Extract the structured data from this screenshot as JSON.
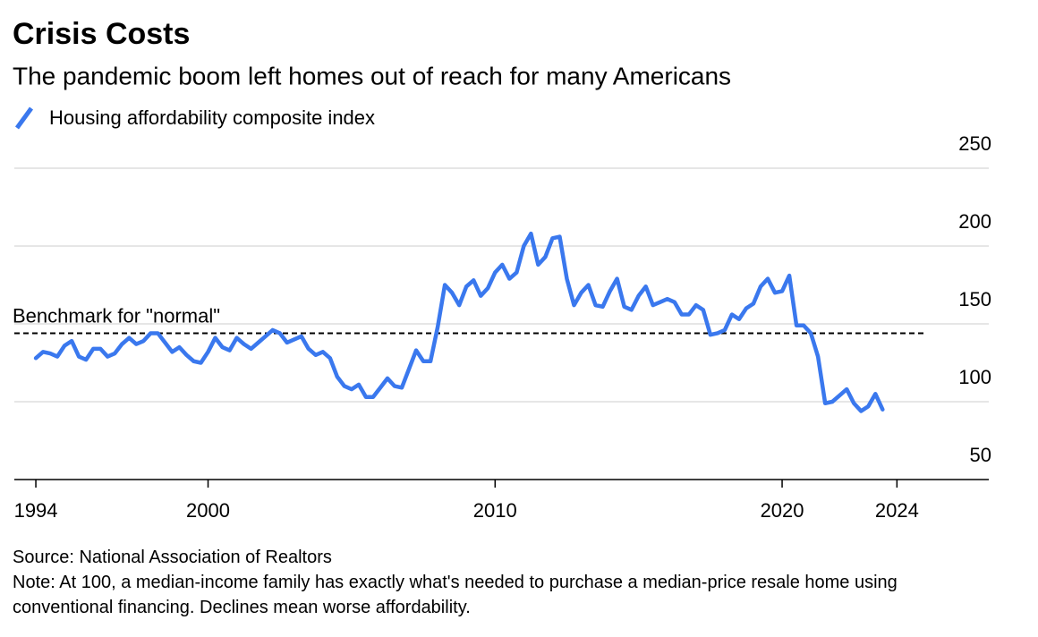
{
  "chart_data": {
    "type": "line",
    "title": "Crisis Costs",
    "subtitle": "The pandemic boom left homes out of reach for many Americans",
    "source": "Source: National Association of Realtors",
    "note": "Note: At 100, a median-income family has exactly what's needed to purchase a median-price resale home using conventional financing. Declines mean worse affordability.",
    "benchmark": {
      "label": "Benchmark for \"normal\"",
      "value": 144
    },
    "xlim": [
      1993.25,
      2027.2
    ],
    "xticks": [
      1994,
      2000,
      2010,
      2020,
      2024
    ],
    "ylim": [
      50,
      250
    ],
    "yticks": [
      50,
      100,
      150,
      200,
      250
    ],
    "grid": true,
    "x": [
      1994,
      1994.25,
      1994.5,
      1994.75,
      1995,
      1995.25,
      1995.5,
      1995.75,
      1996,
      1996.25,
      1996.5,
      1996.75,
      1997,
      1997.25,
      1997.5,
      1997.75,
      1998,
      1998.25,
      1998.5,
      1998.75,
      1999,
      1999.25,
      1999.5,
      1999.75,
      2000,
      2000.25,
      2000.5,
      2000.75,
      2001,
      2001.25,
      2001.5,
      2001.75,
      2002,
      2002.25,
      2002.5,
      2002.75,
      2003,
      2003.25,
      2003.5,
      2003.75,
      2004,
      2004.25,
      2004.5,
      2004.75,
      2005,
      2005.25,
      2005.5,
      2005.75,
      2006,
      2006.25,
      2006.5,
      2006.75,
      2007,
      2007.25,
      2007.5,
      2007.75,
      2008,
      2008.25,
      2008.5,
      2008.75,
      2009,
      2009.25,
      2009.5,
      2009.75,
      2010,
      2010.25,
      2010.5,
      2010.75,
      2011,
      2011.25,
      2011.5,
      2011.75,
      2012,
      2012.25,
      2012.5,
      2012.75,
      2013,
      2013.25,
      2013.5,
      2013.75,
      2014,
      2014.25,
      2014.5,
      2014.75,
      2015,
      2015.25,
      2015.5,
      2015.75,
      2016,
      2016.25,
      2016.5,
      2016.75,
      2017,
      2017.25,
      2017.5,
      2017.75,
      2018,
      2018.25,
      2018.5,
      2018.75,
      2019,
      2019.25,
      2019.5,
      2019.75,
      2020,
      2020.25,
      2020.5,
      2020.75,
      2021,
      2021.25,
      2021.5,
      2021.75,
      2022,
      2022.25,
      2022.5,
      2022.75,
      2023,
      2023.25,
      2023.5
    ],
    "series": [
      {
        "name": "Housing affordability composite index",
        "color": "#3a78ee",
        "values": [
          128,
          132,
          131,
          129,
          136,
          139,
          129,
          127,
          134,
          134,
          129,
          131,
          137,
          141,
          137,
          139,
          144,
          144,
          138,
          132,
          135,
          130,
          126,
          125,
          132,
          141,
          135,
          133,
          141,
          137,
          134,
          138,
          142,
          146,
          144,
          138,
          140,
          142,
          134,
          130,
          132,
          128,
          116,
          110,
          108,
          111,
          103,
          103,
          109,
          115,
          110,
          109,
          121,
          133,
          126,
          126,
          148,
          175,
          170,
          162,
          174,
          178,
          168,
          173,
          183,
          188,
          179,
          183,
          200,
          208,
          188,
          193,
          205,
          206,
          179,
          162,
          170,
          175,
          162,
          161,
          171,
          179,
          161,
          159,
          168,
          174,
          162,
          164,
          166,
          164,
          156,
          156,
          162,
          159,
          143,
          144,
          146,
          156,
          153,
          160,
          163,
          174,
          179,
          170,
          171,
          181,
          149,
          149,
          144,
          129,
          99,
          100,
          104,
          108,
          99,
          94,
          97,
          105,
          95
        ]
      }
    ]
  }
}
